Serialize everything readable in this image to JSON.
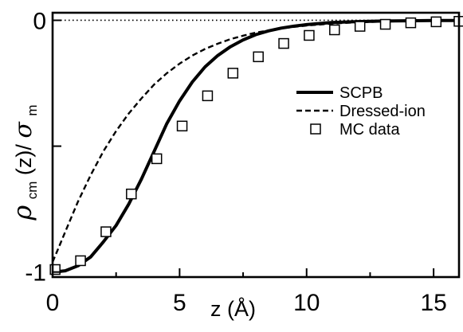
{
  "chart_data": {
    "type": "line",
    "xlabel": "z (Å)",
    "ylabel_parts": {
      "rho": "ρ",
      "rho_sub": "cm",
      "mid": "(z)/",
      "sigma": "σ",
      "sigma_sub": "m"
    },
    "xlim": [
      0,
      16
    ],
    "ylim": [
      -1.02,
      0.03
    ],
    "x_ticks": [
      0,
      5,
      10,
      15
    ],
    "x_tick_labels": [
      "0",
      "5",
      "10",
      "15"
    ],
    "x_minor_ticks": [
      2.5,
      7.5,
      12.5
    ],
    "y_ticks": [
      -1,
      -0.5,
      0
    ],
    "y_tick_labels": [
      "-1",
      "",
      "0"
    ],
    "zero_reference_line": true,
    "legend_position": "right-middle",
    "series": [
      {
        "name": "SCPB",
        "style": "solid-thick",
        "x": [
          0,
          0.5,
          1,
          1.5,
          2,
          2.5,
          3,
          3.5,
          4,
          4.5,
          5,
          5.5,
          6,
          6.5,
          7,
          7.5,
          8,
          8.5,
          9,
          9.5,
          10,
          11,
          12,
          13,
          14,
          15,
          16
        ],
        "y": [
          -1.0,
          -0.995,
          -0.975,
          -0.94,
          -0.88,
          -0.815,
          -0.73,
          -0.63,
          -0.52,
          -0.41,
          -0.32,
          -0.245,
          -0.185,
          -0.14,
          -0.105,
          -0.078,
          -0.057,
          -0.042,
          -0.031,
          -0.023,
          -0.017,
          -0.009,
          -0.005,
          -0.003,
          -0.002,
          -0.001,
          -0.001
        ]
      },
      {
        "name": "Dressed-ion",
        "style": "dashed",
        "x": [
          0,
          0.25,
          0.5,
          1,
          1.5,
          2,
          2.5,
          3,
          3.5,
          4,
          4.5,
          5,
          5.5,
          6,
          6.5,
          7,
          7.5,
          8,
          9,
          10,
          11,
          12,
          13,
          14,
          15,
          16
        ],
        "y": [
          -0.96,
          -0.9,
          -0.84,
          -0.72,
          -0.615,
          -0.52,
          -0.44,
          -0.37,
          -0.31,
          -0.255,
          -0.21,
          -0.172,
          -0.14,
          -0.114,
          -0.093,
          -0.075,
          -0.061,
          -0.049,
          -0.032,
          -0.021,
          -0.013,
          -0.008,
          -0.005,
          -0.003,
          -0.002,
          -0.001
        ]
      },
      {
        "name": "MC data",
        "style": "open-square-markers",
        "x": [
          0.1,
          1.1,
          2.1,
          3.1,
          4.1,
          5.1,
          6.1,
          7.1,
          8.1,
          9.1,
          10.1,
          11.1,
          12.1,
          13.1,
          14.1,
          15.1,
          16.0
        ],
        "y": [
          -0.99,
          -0.955,
          -0.84,
          -0.69,
          -0.55,
          -0.42,
          -0.3,
          -0.21,
          -0.145,
          -0.092,
          -0.06,
          -0.038,
          -0.024,
          -0.016,
          -0.01,
          -0.006,
          -0.004
        ]
      }
    ]
  }
}
